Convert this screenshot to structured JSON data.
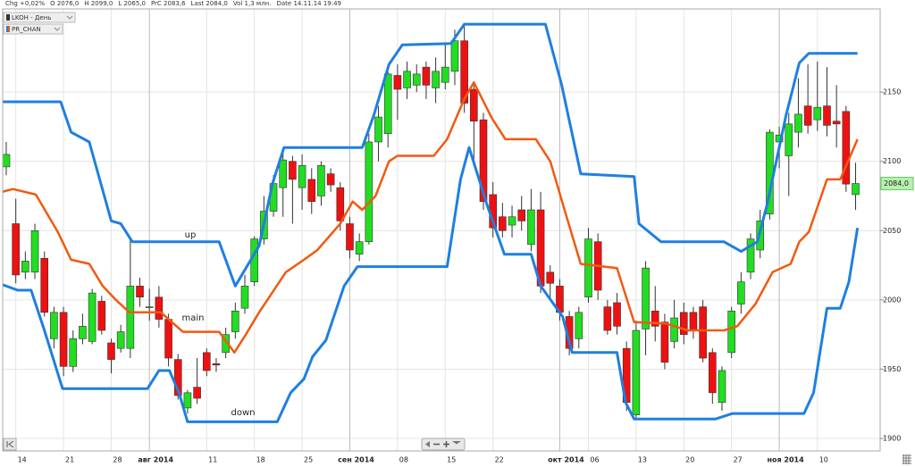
{
  "chart_data": {
    "type": "candlestick",
    "header": [
      "Chg +0,02%",
      "O 2076,0",
      "H 2099,0",
      "L 2065,0",
      "PrC 2083,6",
      "Last 2084,0",
      "Vol 1,3 млн.",
      "Date 14.11.14 19:49"
    ],
    "legend": [
      "LKOH - День",
      "PR_CHAN"
    ],
    "categories": [
      null,
      "14",
      null,
      null,
      null,
      null,
      "21",
      null,
      null,
      null,
      null,
      "28",
      null,
      null,
      null,
      "авг 2014",
      null,
      null,
      null,
      null,
      null,
      "11",
      null,
      null,
      null,
      null,
      "18",
      null,
      null,
      null,
      null,
      "25",
      null,
      null,
      null,
      null,
      "сен 2014",
      null,
      null,
      null,
      null,
      "08",
      null,
      null,
      null,
      null,
      "15",
      null,
      null,
      null,
      null,
      "22",
      null,
      null,
      null,
      null,
      null,
      null,
      "окт 2014",
      null,
      null,
      "06",
      null,
      null,
      null,
      null,
      "13",
      null,
      null,
      null,
      null,
      "20",
      null,
      null,
      null,
      null,
      "27",
      null,
      null,
      null,
      null,
      "ноя 2014",
      null,
      null,
      null,
      "10",
      null,
      null,
      null,
      null
    ],
    "open": [
      2096,
      2055,
      2020,
      2020,
      2030,
      1972,
      1991,
      1952,
      1972,
      1970,
      1999,
      1969,
      1965,
      1965,
      2010,
      1995,
      2002,
      1986,
      1957,
      1922,
      1937,
      1962,
      1954,
      1962,
      1977,
      1994,
      2013,
      2044,
      2064,
      2081,
      2100,
      2081,
      2087,
      2075,
      2091,
      2081,
      2055,
      2033,
      2042,
      2114,
      2120,
      2162,
      2153,
      2155,
      2168,
      2153,
      2157,
      2165,
      2187,
      2152,
      2130,
      2076,
      2060,
      2054,
      2065,
      2040,
      2065,
      2020,
      2010,
      1988,
      1972,
      2002,
      2042,
      1995,
      1998,
      1965,
      1917,
      1979,
      1992,
      1984,
      1970,
      1991,
      1991,
      1995,
      1962,
      1926,
      1962,
      1997,
      2020,
      2036,
      2062,
      2114,
      2104,
      2121,
      2140,
      2130,
      2140,
      2129,
      2136,
      2076
    ],
    "high": [
      2114,
      2073,
      2035,
      2055,
      2035,
      1995,
      1995,
      1978,
      1990,
      2008,
      2003,
      1972,
      1982,
      2045,
      2016,
      2008,
      2010,
      1990,
      1961,
      1935,
      1958,
      1965,
      1958,
      1980,
      1998,
      2018,
      2046,
      2075,
      2090,
      2108,
      2104,
      2105,
      2095,
      2100,
      2095,
      2085,
      2060,
      2048,
      2120,
      2140,
      2165,
      2170,
      2172,
      2170,
      2172,
      2175,
      2185,
      2195,
      2198,
      2155,
      2135,
      2085,
      2070,
      2068,
      2075,
      2080,
      2078,
      2025,
      2015,
      1992,
      1995,
      2052,
      2048,
      2000,
      2005,
      1970,
      1985,
      2028,
      2010,
      1990,
      2000,
      1998,
      1995,
      2000,
      1965,
      1952,
      1995,
      2020,
      2048,
      2065,
      2123,
      2125,
      2135,
      2160,
      2170,
      2172,
      2168,
      2155,
      2140,
      2099
    ],
    "low": [
      2090,
      2012,
      2015,
      2015,
      1988,
      1965,
      1945,
      1948,
      1968,
      1968,
      1975,
      1947,
      1962,
      1958,
      1995,
      1985,
      1980,
      1952,
      1928,
      1918,
      1925,
      1945,
      1948,
      1958,
      1972,
      1990,
      2010,
      2040,
      2060,
      2060,
      2055,
      2065,
      2062,
      2068,
      2078,
      2050,
      2030,
      2028,
      2040,
      2100,
      2110,
      2130,
      2145,
      2150,
      2145,
      2142,
      2152,
      2155,
      2135,
      2100,
      2065,
      2045,
      2045,
      2045,
      2050,
      2035,
      2005,
      2000,
      1985,
      1960,
      1965,
      1998,
      2000,
      1975,
      1975,
      1920,
      1915,
      1960,
      1970,
      1950,
      1965,
      1968,
      1972,
      1955,
      1925,
      1920,
      1958,
      1990,
      2015,
      2030,
      2058,
      2095,
      2075,
      2110,
      2120,
      2122,
      2118,
      2110,
      2078,
      2065
    ],
    "close": [
      2105,
      2018,
      2028,
      2050,
      1991,
      1991,
      1952,
      1972,
      1981,
      2005,
      1978,
      1957,
      1977,
      2010,
      2002,
      1995,
      1986,
      1958,
      1931,
      1933,
      1929,
      1949,
      1953,
      1975,
      1992,
      2010,
      2044,
      2064,
      2084,
      2101,
      2087,
      2097,
      2071,
      2097,
      2083,
      2057,
      2036,
      2042,
      2114,
      2132,
      2163,
      2152,
      2165,
      2163,
      2155,
      2165,
      2168,
      2187,
      2142,
      2129,
      2071,
      2052,
      2050,
      2060,
      2057,
      2065,
      2010,
      2012,
      1991,
      1965,
      1991,
      2044,
      2007,
      1978,
      1981,
      1926,
      1978,
      2023,
      1981,
      1955,
      1987,
      1975,
      1978,
      1958,
      1933,
      1949,
      1992,
      2013,
      2044,
      2057,
      2121,
      2119,
      2127,
      2134,
      2126,
      2139,
      2126,
      2127,
      2083.6,
      2084
    ],
    "up_color": "#22dd22",
    "down_color": "#ee1111",
    "series": [
      {
        "name": "up",
        "color": "#1f7fe0",
        "x": [
          -0.4,
          5.7,
          6.8,
          8.7,
          11,
          12,
          13.2,
          22.3,
          24,
          26.5,
          27.9,
          29.1,
          37.3,
          38.5,
          40.1,
          41.5,
          46.6,
          48,
          56.5,
          58.2,
          60.2,
          65.8,
          66.3,
          68.6,
          75.2,
          77,
          78.7,
          79.7,
          81.7,
          83.1,
          84.1,
          89.2
        ],
        "values": [
          2143,
          2143,
          2121,
          2114,
          2057,
          2055,
          2042,
          2042,
          2010,
          2039,
          2084,
          2110,
          2110,
          2133,
          2170,
          2184,
          2185,
          2199,
          2199,
          2155,
          2091,
          2089,
          2055,
          2042,
          2042,
          2035,
          2042,
          2068,
          2133,
          2171,
          2178,
          2178
        ]
      },
      {
        "name": "main",
        "color": "#f05a10",
        "x": [
          -0.4,
          0.7,
          3.1,
          5.4,
          6.8,
          8.7,
          10.1,
          11.5,
          12.9,
          16.2,
          18.5,
          22.3,
          23.9,
          25.1,
          26.5,
          29.3,
          31.2,
          32.6,
          35,
          36.3,
          37.3,
          38.7,
          40.1,
          41,
          44.8,
          46.2,
          48,
          49,
          50.9,
          52.3,
          55.5,
          57,
          58.8,
          60.2,
          64,
          65.8,
          69.1,
          71.4,
          75.2,
          76.6,
          78.5,
          80.3,
          82.2,
          83.1,
          84.1,
          86,
          87.4,
          89.2
        ],
        "values": [
          2078,
          2080,
          2076,
          2049,
          2029,
          2026,
          2010,
          2000,
          1991,
          1991,
          1977,
          1977,
          1962,
          1975,
          1991,
          2020,
          2029,
          2036,
          2055,
          2071,
          2065,
          2075,
          2100,
          2104,
          2104,
          2116,
          2145,
          2157,
          2131,
          2116,
          2116,
          2100,
          2058,
          2026,
          2023,
          1984,
          1983,
          1978,
          1978,
          1981,
          1997,
          2020,
          2026,
          2042,
          2049,
          2087,
          2087,
          2116
        ]
      },
      {
        "name": "down",
        "color": "#1f7fe0",
        "x": [
          -0.4,
          1.2,
          2.6,
          4,
          5.9,
          14.8,
          16,
          17.1,
          18.1,
          19,
          28.4,
          29.8,
          31.2,
          32.1,
          33.5,
          35.4,
          36.8,
          46.2,
          47.6,
          48.5,
          50.4,
          52.2,
          55,
          56,
          58.3,
          59.3,
          64,
          64.9,
          65.8,
          74.3,
          76.1,
          83.6,
          84.6,
          86,
          87.4,
          88.3,
          89.2
        ],
        "values": [
          2011,
          2007,
          2007,
          1978,
          1936,
          1936,
          1949,
          1949,
          1933,
          1912,
          1912,
          1933,
          1943,
          1959,
          1971,
          2010,
          2024,
          2024,
          2087,
          2110,
          2068,
          2033,
          2033,
          2010,
          1988,
          1962,
          1962,
          1926,
          1914,
          1914,
          1918,
          1918,
          1933,
          1994,
          1994,
          2013,
          2052
        ]
      }
    ],
    "ylim": [
      1891,
      2210
    ],
    "yticks": [
      1900,
      1950,
      2000,
      2050,
      2100,
      2150
    ],
    "grid": true,
    "price_tag": {
      "value": 2084,
      "label": "2084,0"
    }
  }
}
